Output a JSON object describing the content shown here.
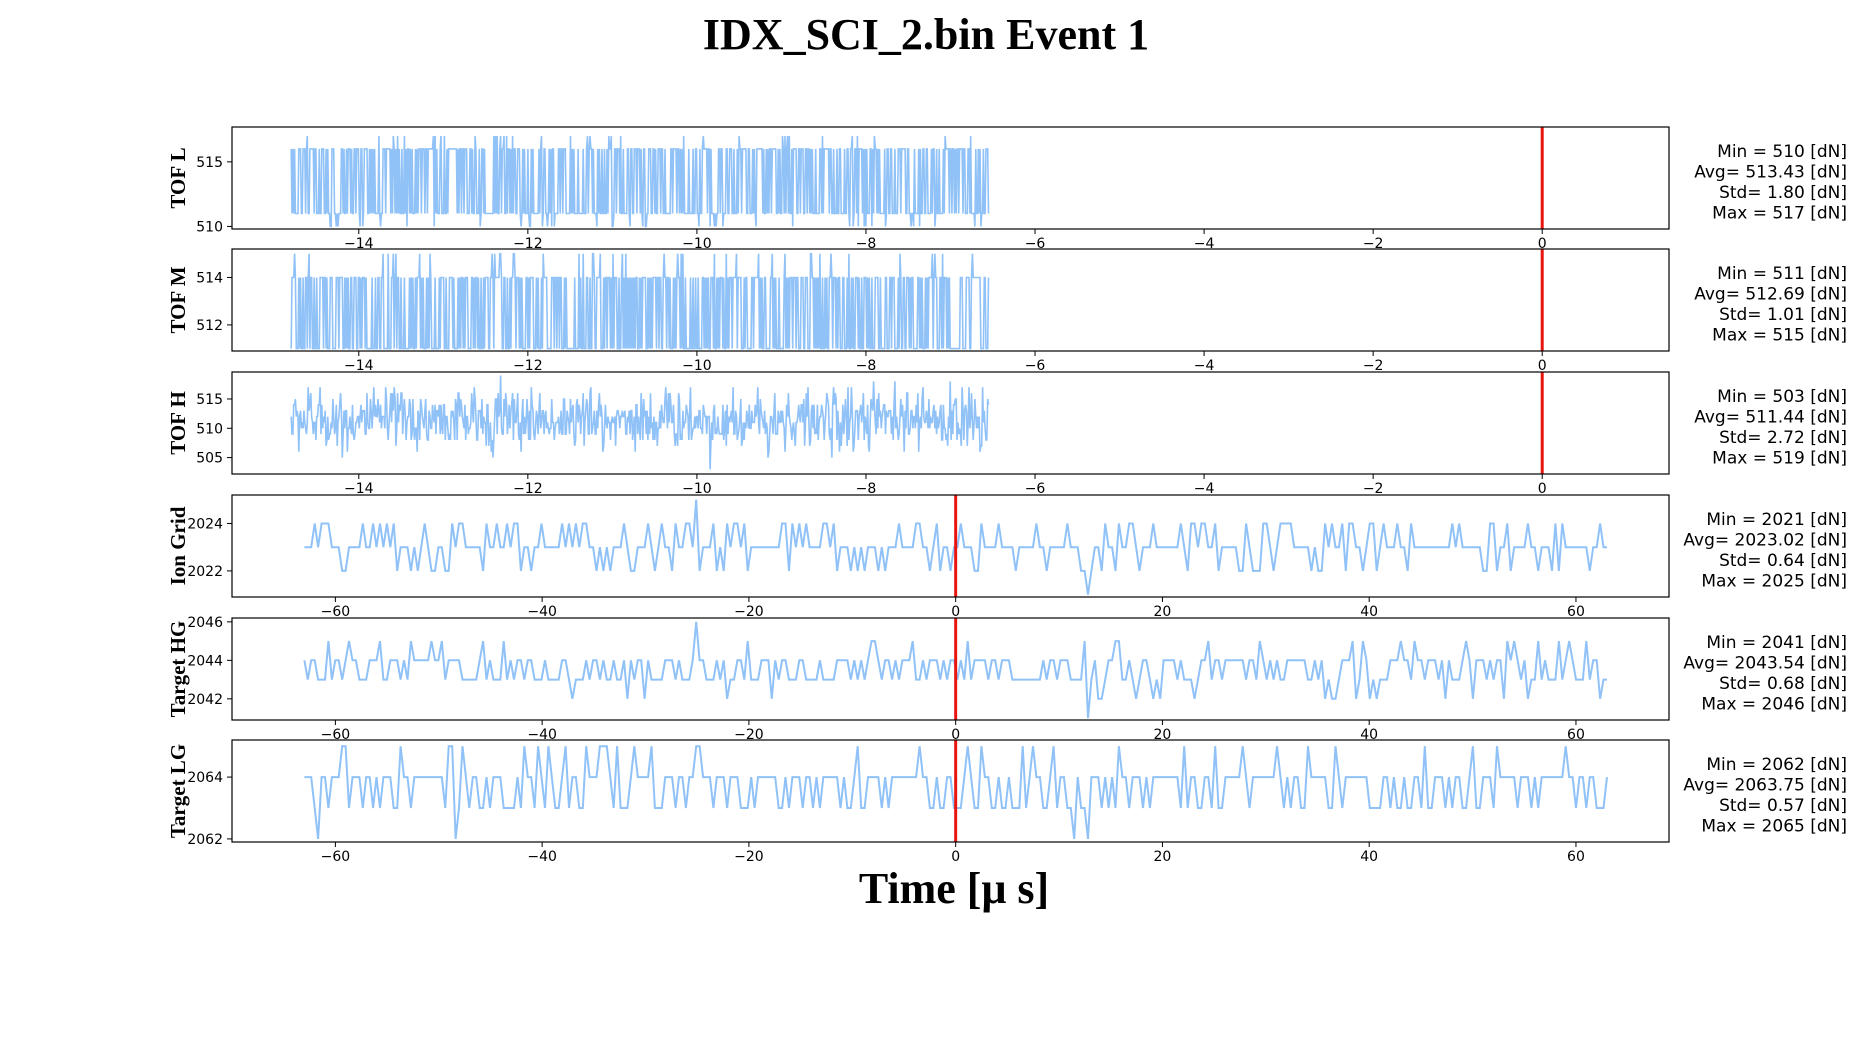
{
  "title": "IDX_SCI_2.bin Event 1",
  "xlabel": "Time [μ s]",
  "colors": {
    "trace": "#90c2f8",
    "marker": "#e8150f",
    "axes": "#000000"
  },
  "chart_data": [
    {
      "type": "line",
      "ylabel": "TOF L",
      "xlim": [
        -15.5,
        1.5
      ],
      "ylim": [
        509.8,
        517.7
      ],
      "xticks": [
        -14,
        -12,
        -10,
        -8,
        -6,
        -4,
        -2,
        0
      ],
      "yticks": [
        510,
        515
      ],
      "x_range": [
        -14.8,
        -6.55
      ],
      "marker_x": 0,
      "stats": {
        "min": "Min = 510 [dN]",
        "avg": "Avg= 513.43 [dN]",
        "std": "Std= 1.80 [dN]",
        "max": "Max = 517 [dN]"
      },
      "series": [
        {
          "min": 510,
          "mean": 513.43,
          "std": 1.8,
          "max": 517
        }
      ]
    },
    {
      "type": "line",
      "ylabel": "TOF M",
      "xlim": [
        -15.5,
        1.5
      ],
      "ylim": [
        510.9,
        515.2
      ],
      "xticks": [
        -14,
        -12,
        -10,
        -8,
        -6,
        -4,
        -2,
        0
      ],
      "yticks": [
        512,
        514
      ],
      "x_range": [
        -14.8,
        -6.55
      ],
      "marker_x": 0,
      "stats": {
        "min": "Min = 511 [dN]",
        "avg": "Avg= 512.69 [dN]",
        "std": "Std= 1.01 [dN]",
        "max": "Max = 515 [dN]"
      },
      "series": [
        {
          "min": 511,
          "mean": 512.69,
          "std": 1.01,
          "max": 515
        }
      ]
    },
    {
      "type": "line",
      "ylabel": "TOF H",
      "xlim": [
        -15.5,
        1.5
      ],
      "ylim": [
        502.2,
        519.6
      ],
      "xticks": [
        -14,
        -12,
        -10,
        -8,
        -6,
        -4,
        -2,
        0
      ],
      "yticks": [
        505,
        510,
        515
      ],
      "x_range": [
        -14.8,
        -6.55
      ],
      "marker_x": 0,
      "stats": {
        "min": "Min = 503 [dN]",
        "avg": "Avg= 511.44 [dN]",
        "std": "Std= 2.72 [dN]",
        "max": "Max = 519 [dN]"
      },
      "series": [
        {
          "min": 503,
          "mean": 511.44,
          "std": 2.72,
          "max": 519
        }
      ]
    },
    {
      "type": "line",
      "ylabel": "Ion Grid",
      "xlim": [
        -70,
        69
      ],
      "ylim": [
        2020.9,
        2025.2
      ],
      "xticks": [
        -60,
        -40,
        -20,
        0,
        20,
        40,
        60
      ],
      "yticks": [
        2022,
        2024
      ],
      "x_range": [
        -63,
        63
      ],
      "marker_x": 0,
      "stats": {
        "min": "Min = 2021 [dN]",
        "avg": "Avg= 2023.02 [dN]",
        "std": "Std= 0.64 [dN]",
        "max": "Max = 2025 [dN]"
      },
      "series": [
        {
          "min": 2021,
          "mean": 2023.02,
          "std": 0.64,
          "max": 2025
        }
      ]
    },
    {
      "type": "line",
      "ylabel": "Target HG",
      "xlim": [
        -70,
        69
      ],
      "ylim": [
        2040.9,
        2046.2
      ],
      "xticks": [
        -60,
        -40,
        -20,
        0,
        20,
        40,
        60
      ],
      "yticks": [
        2042,
        2044,
        2046
      ],
      "x_range": [
        -63,
        63
      ],
      "marker_x": 0,
      "stats": {
        "min": "Min = 2041 [dN]",
        "avg": "Avg= 2043.54 [dN]",
        "std": "Std= 0.68 [dN]",
        "max": "Max = 2046 [dN]"
      },
      "series": [
        {
          "min": 2041,
          "mean": 2043.54,
          "std": 0.68,
          "max": 2046
        }
      ]
    },
    {
      "type": "line",
      "ylabel": "Target LG",
      "xlim": [
        -70,
        69
      ],
      "ylim": [
        2061.9,
        2065.2
      ],
      "xticks": [
        -60,
        -40,
        -20,
        0,
        20,
        40,
        60
      ],
      "yticks": [
        2062,
        2064
      ],
      "x_range": [
        -63,
        63
      ],
      "marker_x": 0,
      "stats": {
        "min": "Min = 2062 [dN]",
        "avg": "Avg= 2063.75 [dN]",
        "std": "Std= 0.57 [dN]",
        "max": "Max = 2065 [dN]"
      },
      "series": [
        {
          "min": 2062,
          "mean": 2063.75,
          "std": 0.57,
          "max": 2065
        }
      ]
    }
  ]
}
